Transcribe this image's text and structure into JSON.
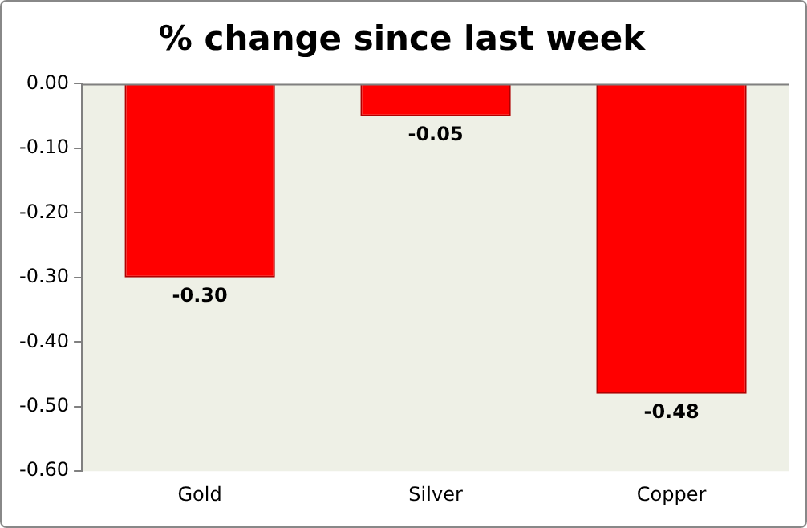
{
  "chart_data": {
    "type": "bar",
    "title": "% change since last week",
    "categories": [
      "Gold",
      "Silver",
      "Copper"
    ],
    "values": [
      -0.3,
      -0.05,
      -0.48
    ],
    "color": "#ff0000",
    "value_labels": [
      "-0.30",
      "-0.05",
      "-0.48"
    ],
    "ylim": [
      -0.6,
      0
    ],
    "yticks": [
      {
        "value": -0.6,
        "label": "-0.60"
      },
      {
        "value": -0.5,
        "label": "-0.50"
      },
      {
        "value": -0.4,
        "label": "-0.40"
      },
      {
        "value": -0.3,
        "label": "-0.30"
      },
      {
        "value": -0.2,
        "label": "-0.20"
      },
      {
        "value": -0.1,
        "label": "-0.10"
      },
      {
        "value": 0,
        "label": "0.00"
      }
    ],
    "grid": false,
    "legend": false
  }
}
